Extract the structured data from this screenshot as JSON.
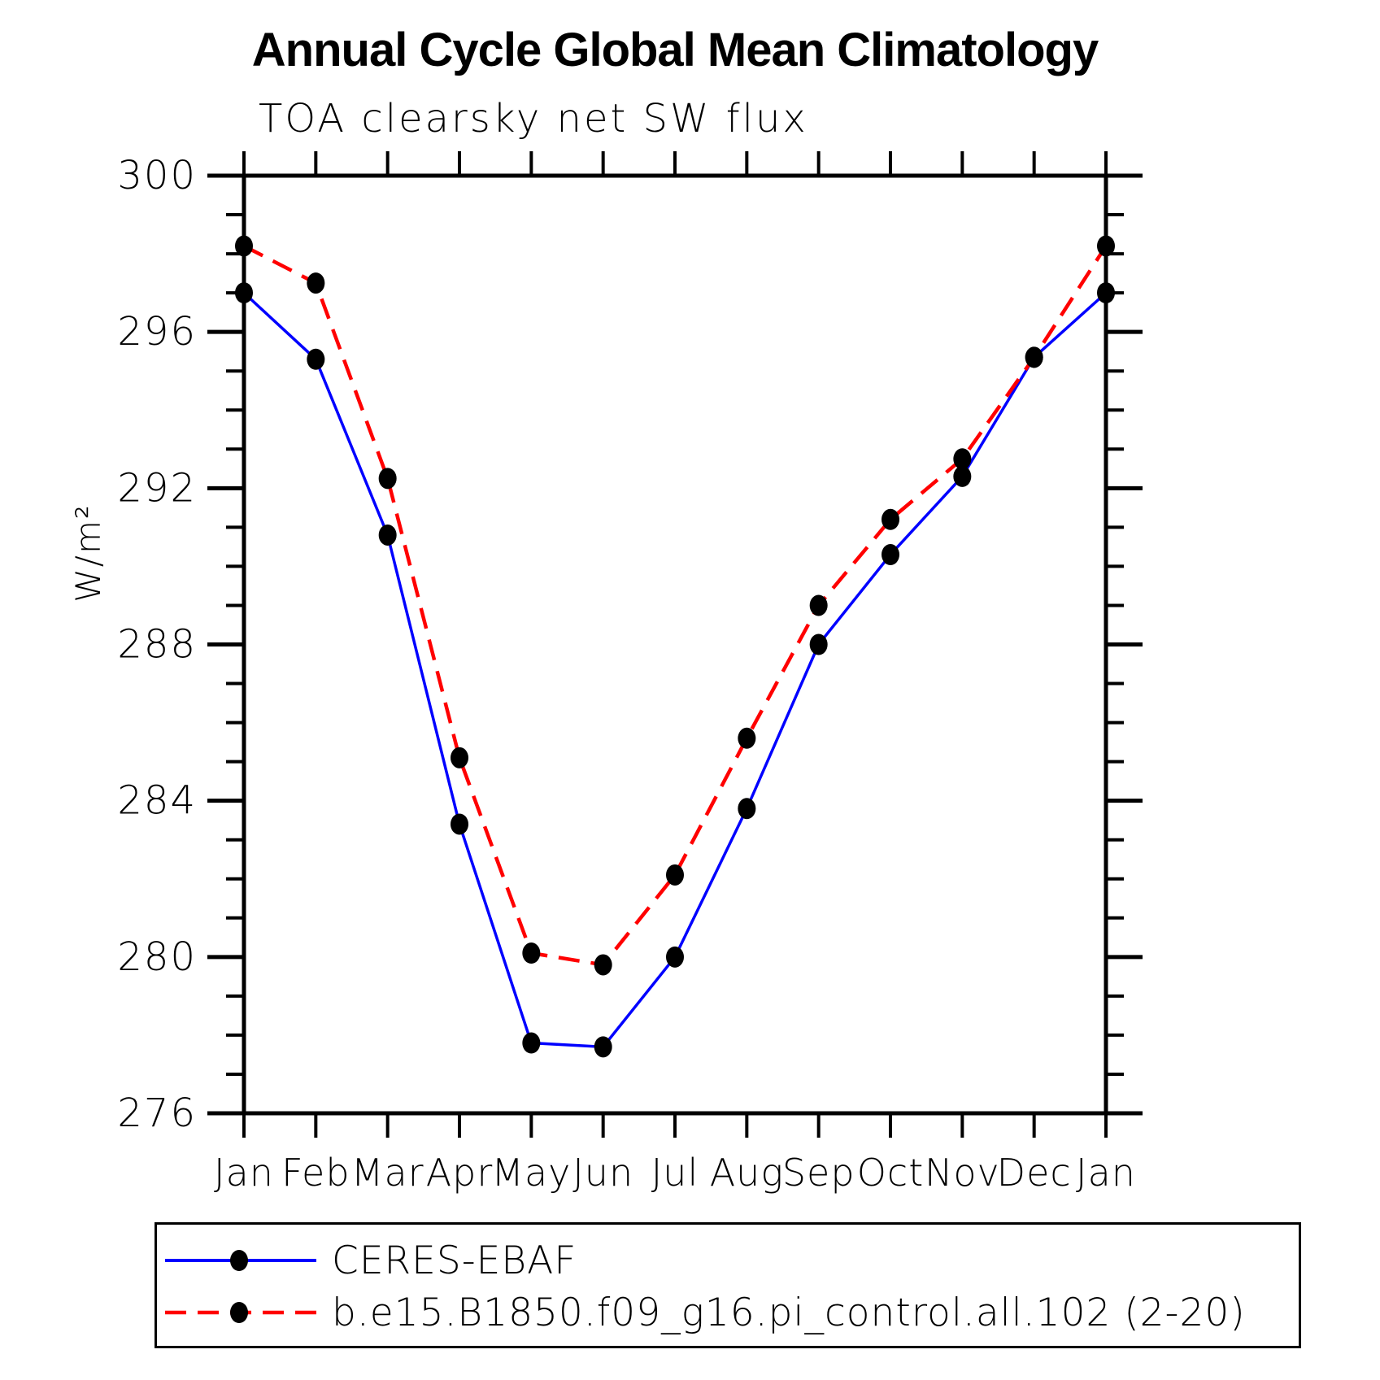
{
  "chart_data": {
    "type": "line",
    "title": "Annual Cycle Global Mean Climatology",
    "subtitle": "TOA clearsky net SW flux",
    "ylabel": "W/m²",
    "xlabel": "",
    "ylim": [
      276,
      300
    ],
    "ytick_major_step": 4,
    "ytick_minor_step": 1,
    "grid": false,
    "legend_position": "bottom",
    "categories": [
      "Jan",
      "Feb",
      "Mar",
      "Apr",
      "May",
      "Jun",
      "Jul",
      "Aug",
      "Sep",
      "Oct",
      "Nov",
      "Dec",
      "Jan"
    ],
    "series": [
      {
        "name": "CERES-EBAF",
        "color": "#0000ff",
        "line_style": "solid",
        "marker": "filled-black-circle",
        "values": [
          297.0,
          295.3,
          290.8,
          283.4,
          277.8,
          277.7,
          280.0,
          283.8,
          288.0,
          290.3,
          292.3,
          295.35,
          297.0
        ]
      },
      {
        "name": "b.e15.B1850.f09_g16.pi_control.all.102 (2-20)",
        "color": "#ff0000",
        "line_style": "dashed",
        "marker": "filled-black-circle",
        "values": [
          298.2,
          297.25,
          292.25,
          285.1,
          280.1,
          279.8,
          282.1,
          285.6,
          289.0,
          291.2,
          292.75,
          295.35,
          298.2
        ]
      }
    ]
  },
  "colors": {
    "background": "#ffffff",
    "axis": "#000000",
    "marker": "#000000",
    "text": "#000000"
  }
}
